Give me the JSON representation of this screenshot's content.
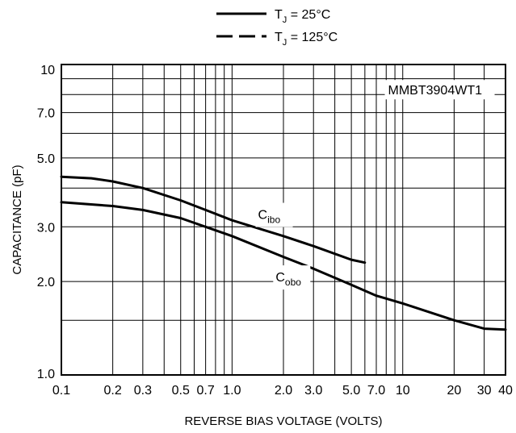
{
  "chart_data": {
    "type": "line",
    "x_scale": "log",
    "y_scale": "log",
    "xlim": [
      0.1,
      40
    ],
    "ylim": [
      1.0,
      10
    ],
    "xlabel": "REVERSE BIAS VOLTAGE (VOLTS)",
    "ylabel": "CAPACITANCE (pF)",
    "x_ticks": [
      0.1,
      0.2,
      0.3,
      0.5,
      0.7,
      1.0,
      2.0,
      3.0,
      5.0,
      7.0,
      10,
      20,
      30,
      40
    ],
    "x_tick_labels": [
      "0.1",
      "0.2",
      "0.3",
      "0.5",
      "0.7",
      "1.0",
      "2.0",
      "3.0",
      "5.0",
      "7.0",
      "10",
      "20",
      "30",
      "40"
    ],
    "y_ticks": [
      1.0,
      2.0,
      3.0,
      5.0,
      7.0,
      10
    ],
    "y_tick_labels": [
      "1.0",
      "2.0",
      "3.0",
      "5.0",
      "7.0",
      "10"
    ],
    "grid": true,
    "legend": {
      "placement": "top-center",
      "entries": [
        {
          "label_main": "T",
          "label_sub": "J",
          "label_rest": " = 25°C",
          "style": "solid"
        },
        {
          "label_main": "T",
          "label_sub": "J",
          "label_rest": " = 125°C",
          "style": "dashed"
        }
      ]
    },
    "annotation": "MMBT3904WT1",
    "series": [
      {
        "label_main": "C",
        "label_sub": "ibo",
        "style": "solid",
        "x": [
          0.1,
          0.15,
          0.2,
          0.3,
          0.5,
          0.7,
          1.0,
          2.0,
          3.0,
          5.0,
          6.0
        ],
        "y": [
          4.35,
          4.3,
          4.2,
          4.0,
          3.65,
          3.4,
          3.15,
          2.8,
          2.6,
          2.35,
          2.3
        ]
      },
      {
        "label_main": "C",
        "label_sub": "obo",
        "style": "solid",
        "x": [
          0.1,
          0.2,
          0.3,
          0.5,
          0.7,
          1.0,
          2.0,
          3.0,
          5.0,
          7.0,
          10,
          20,
          30,
          40
        ],
        "y": [
          3.6,
          3.5,
          3.4,
          3.2,
          3.0,
          2.8,
          2.4,
          2.2,
          1.95,
          1.8,
          1.7,
          1.5,
          1.41,
          1.4
        ]
      }
    ]
  }
}
